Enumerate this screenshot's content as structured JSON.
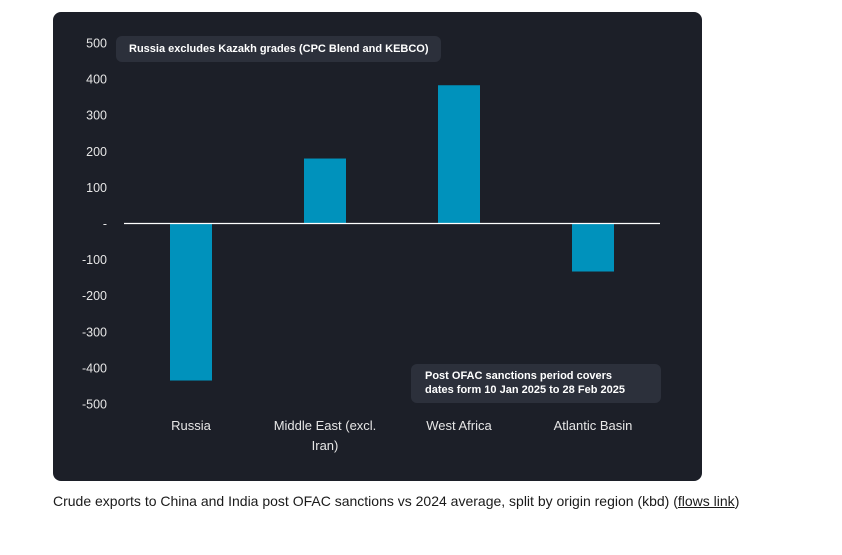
{
  "chart_data": {
    "type": "bar",
    "categories": [
      "Russia",
      "Middle East (excl. Iran)",
      "West Africa",
      "Atlantic Basin"
    ],
    "category_lines": [
      [
        "Russia"
      ],
      [
        "Middle East (excl.",
        "Iran)"
      ],
      [
        "West Africa"
      ],
      [
        "Atlantic Basin"
      ]
    ],
    "values": [
      -435,
      180,
      383,
      -133
    ],
    "ylim": [
      -500,
      500
    ],
    "yticks": [
      500,
      400,
      300,
      200,
      100,
      0,
      -100,
      -200,
      -300,
      -400,
      -500
    ],
    "ytick_labels": [
      "500",
      "400",
      "300",
      "200",
      "100",
      "-",
      "-100",
      "-200",
      "-300",
      "-400",
      "-500"
    ],
    "bar_color": "#0092bc",
    "background": "#1c1f28",
    "grid": false,
    "annotations": [
      "Russia excludes Kazakh grades (CPC Blend and KEBCO)",
      "Post OFAC sanctions period covers dates form 10 Jan 2025 to 28 Feb 2025"
    ]
  },
  "notes": {
    "top": "Russia excludes Kazakh grades (CPC Blend and KEBCO)",
    "bottom_line1": "Post OFAC sanctions period covers",
    "bottom_line2": "dates form 10 Jan 2025 to 28 Feb 2025"
  },
  "caption": {
    "text": "Crude exports to China and India post OFAC sanctions vs 2024 average, split by origin region (kbd) (",
    "link": "flows link",
    "close": ")"
  }
}
